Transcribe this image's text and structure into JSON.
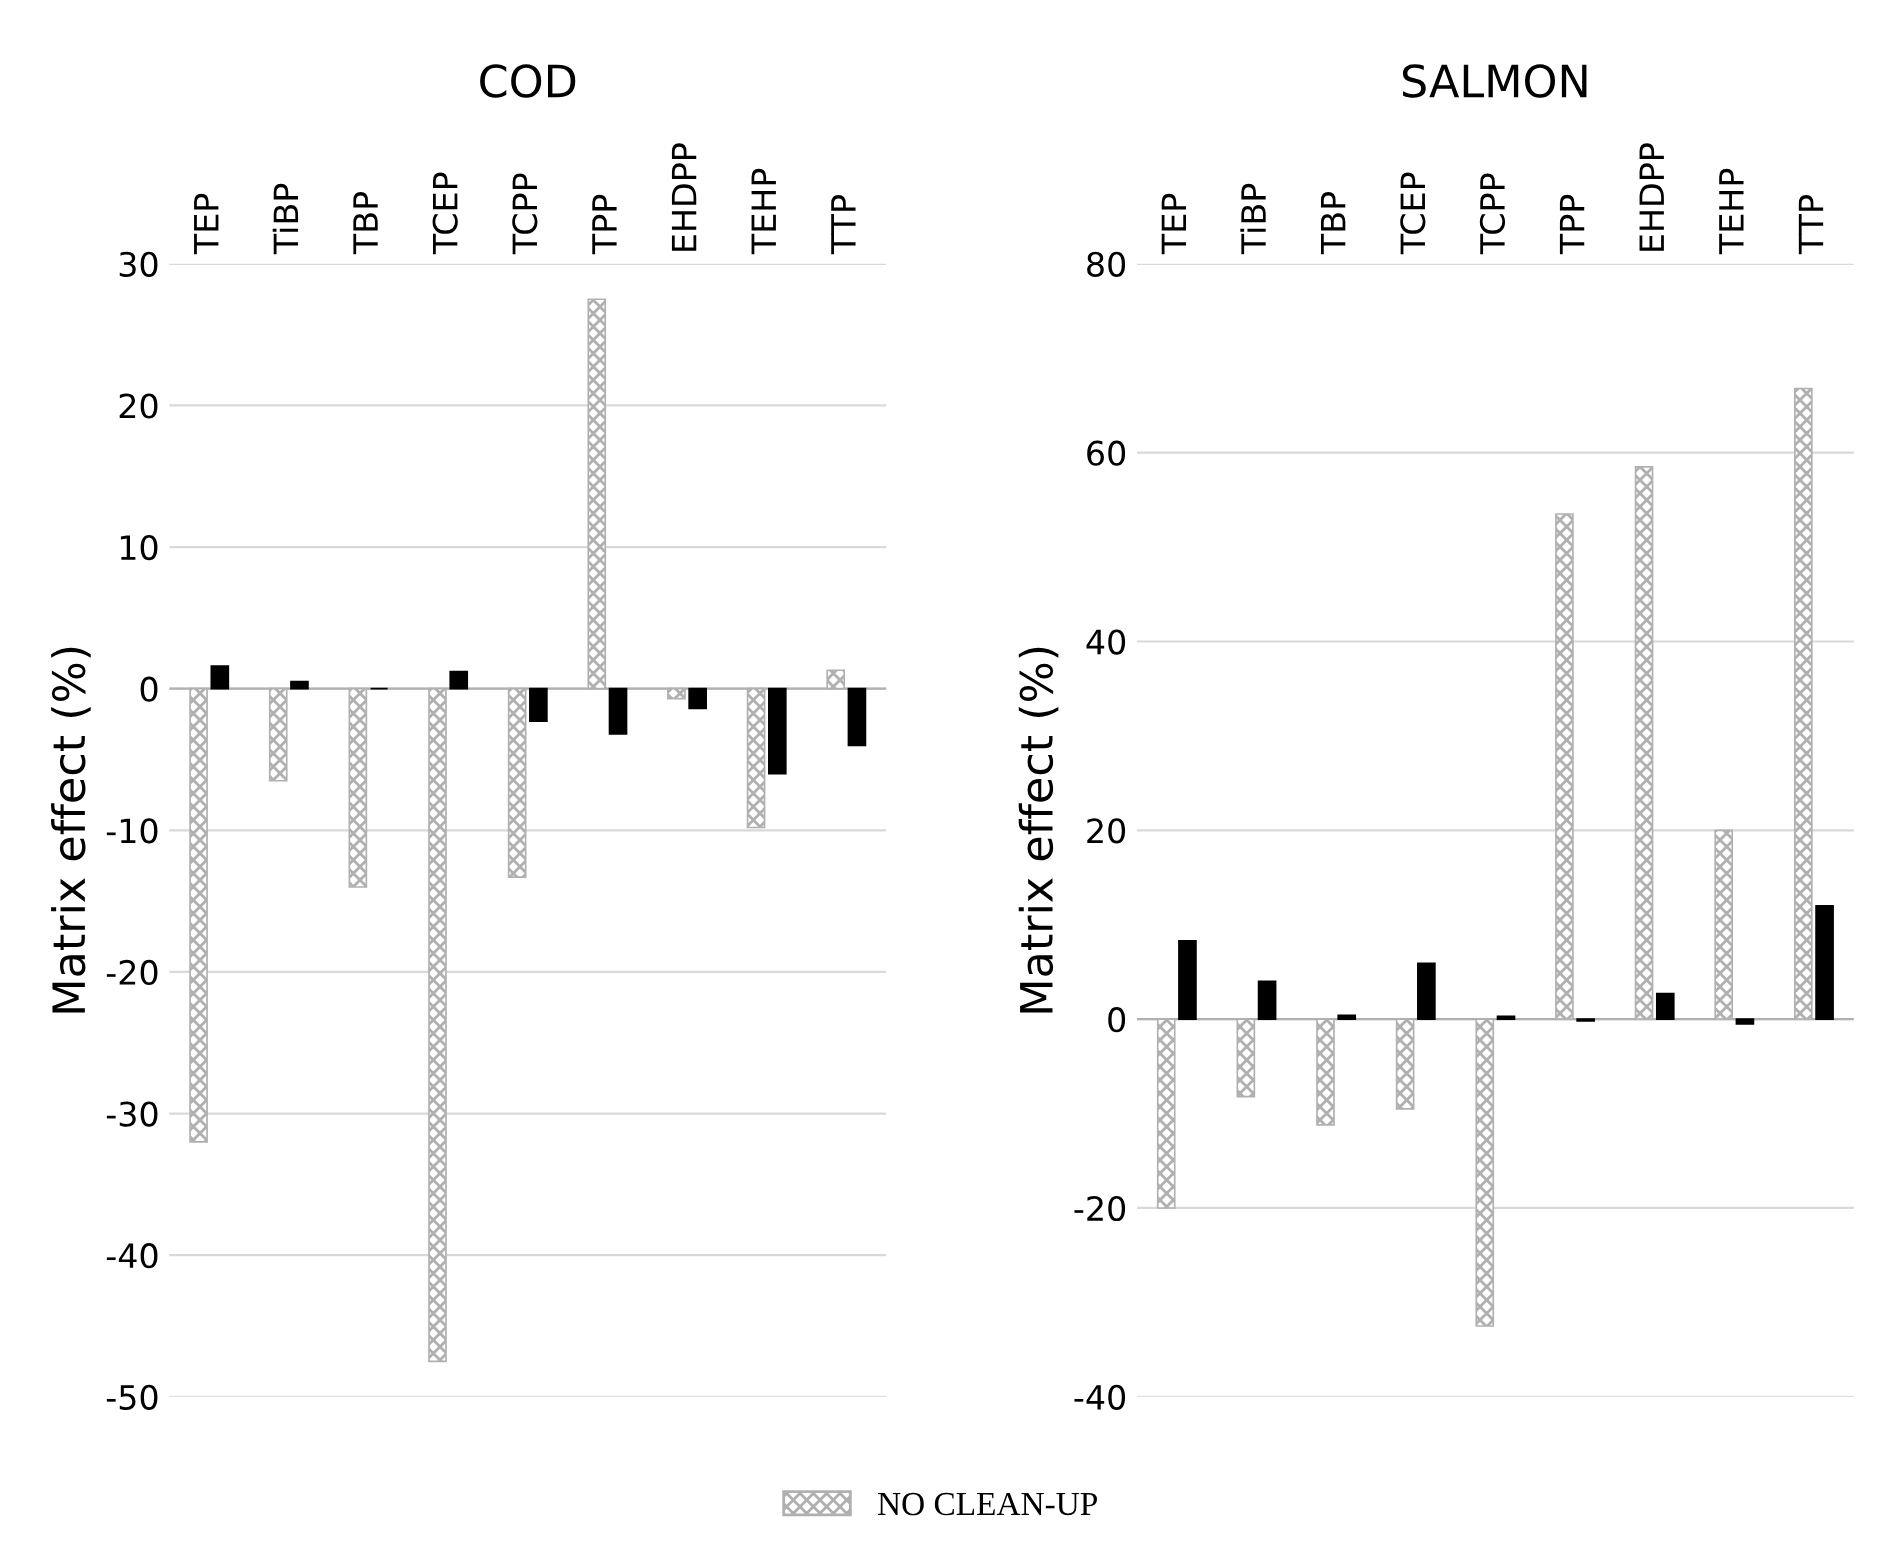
{
  "chart_data": [
    {
      "type": "bar",
      "title": "COD",
      "ylabel": "Matrix effect (%)",
      "categories": [
        "TEP",
        "TiBP",
        "TBP",
        "TCEP",
        "TCPP",
        "TPP",
        "EHDPP",
        "TEHP",
        "TTP"
      ],
      "ylim": [
        -50,
        30
      ],
      "yticks": [
        -50,
        -40,
        -30,
        -20,
        -10,
        0,
        10,
        20,
        30
      ],
      "grid": "y",
      "legend": "bottom",
      "series": [
        {
          "name": "NO CLEAN-UP",
          "color": "#b0b0b0",
          "values": [
            -32,
            -6.5,
            -14,
            -47.5,
            -13.3,
            27.5,
            -0.7,
            -9.8,
            1.3
          ]
        },
        {
          "color": "#000000",
          "values": [
            1.6,
            0.5,
            0,
            1.2,
            -2.3,
            -3.2,
            -1.4,
            -6,
            -4
          ]
        }
      ]
    },
    {
      "type": "bar",
      "title": "SALMON",
      "ylabel": "Matrix effect (%)",
      "categories": [
        "TEP",
        "TiBP",
        "TBP",
        "TCEP",
        "TCPP",
        "TPP",
        "EHDPP",
        "TEHP",
        "TTP"
      ],
      "ylim": [
        -40,
        80
      ],
      "yticks": [
        -40,
        -20,
        0,
        20,
        40,
        60,
        80
      ],
      "grid": "y",
      "series": [
        {
          "name": "NO CLEAN-UP",
          "color": "#b0b0b0",
          "values": [
            -20,
            -8.2,
            -11.2,
            -9.5,
            -32.5,
            53.5,
            58.5,
            20,
            66.8
          ]
        },
        {
          "color": "#000000",
          "values": [
            8.3,
            4,
            0.4,
            5.9,
            0.3,
            -0.2,
            2.7,
            -0.5,
            12
          ]
        }
      ]
    }
  ]
}
